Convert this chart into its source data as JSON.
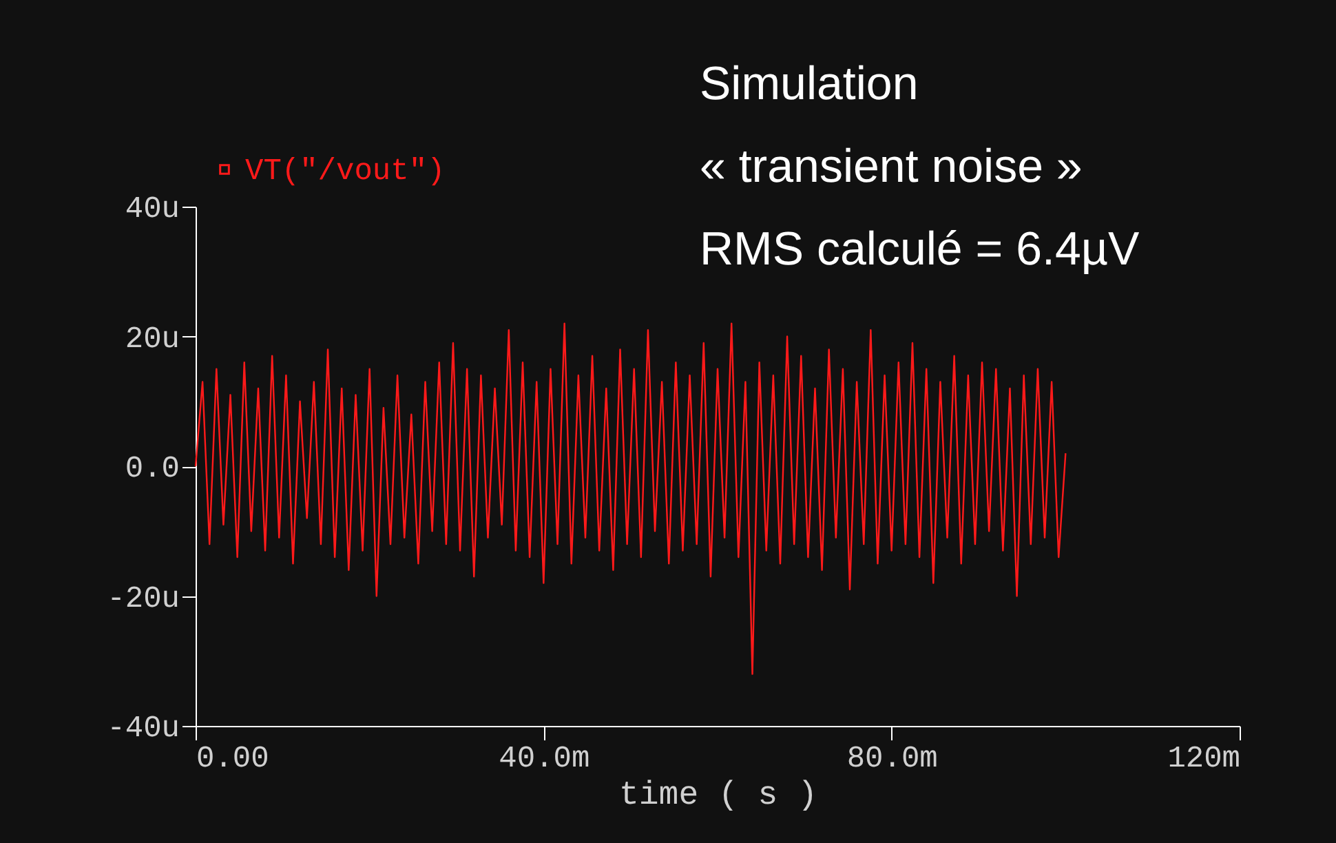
{
  "chart_data": {
    "type": "line",
    "xlabel": "time ( s )",
    "x": [
      0,
      0.8,
      1.6,
      2.4,
      3.2,
      4,
      4.8,
      5.6,
      6.4,
      7.2,
      8,
      8.8,
      9.6,
      10.4,
      11.2,
      12,
      12.8,
      13.6,
      14.4,
      15.2,
      16,
      16.8,
      17.6,
      18.4,
      19.2,
      20,
      20.8,
      21.6,
      22.4,
      23.2,
      24,
      24.8,
      25.6,
      26.4,
      27.2,
      28,
      28.8,
      29.6,
      30.4,
      31.2,
      32,
      32.8,
      33.6,
      34.4,
      35.2,
      36,
      36.8,
      37.6,
      38.4,
      39.2,
      40,
      40.8,
      41.6,
      42.4,
      43.2,
      44,
      44.8,
      45.6,
      46.4,
      47.2,
      48,
      48.8,
      49.6,
      50.4,
      51.2,
      52,
      52.8,
      53.6,
      54.4,
      55.2,
      56,
      56.8,
      57.6,
      58.4,
      59.2,
      60,
      60.8,
      61.6,
      62.4,
      63.2,
      64,
      64.8,
      65.6,
      66.4,
      67.2,
      68,
      68.8,
      69.6,
      70.4,
      71.2,
      72,
      72.8,
      73.6,
      74.4,
      75.2,
      76,
      76.8,
      77.6,
      78.4,
      79.2,
      80,
      80.8,
      81.6,
      82.4,
      83.2,
      84,
      84.8,
      85.6,
      86.4,
      87.2,
      88,
      88.8,
      89.6,
      90.4,
      91.2,
      92,
      92.8,
      93.6,
      94.4,
      95.2,
      96,
      96.8,
      97.6,
      98.4,
      99.2,
      100
    ],
    "series": [
      {
        "name": "VT(\"/vout\")",
        "color": "#ff1a1a",
        "values": [
          0,
          13,
          -12,
          15,
          -9,
          11,
          -14,
          16,
          -10,
          12,
          -13,
          17,
          -11,
          14,
          -15,
          10,
          -8,
          13,
          -12,
          18,
          -14,
          12,
          -16,
          11,
          -13,
          15,
          -20,
          9,
          -12,
          14,
          -11,
          8,
          -15,
          13,
          -10,
          16,
          -12,
          19,
          -13,
          15,
          -17,
          14,
          -11,
          12,
          -9,
          21,
          -13,
          16,
          -14,
          13,
          -18,
          15,
          -12,
          22,
          -15,
          14,
          -11,
          17,
          -13,
          12,
          -16,
          18,
          -12,
          15,
          -14,
          21,
          -10,
          13,
          -15,
          16,
          -13,
          14,
          -12,
          19,
          -17,
          15,
          -11,
          22,
          -14,
          13,
          -32,
          16,
          -13,
          14,
          -15,
          20,
          -12,
          17,
          -14,
          12,
          -16,
          18,
          -11,
          15,
          -19,
          13,
          -12,
          21,
          -15,
          14,
          -13,
          16,
          -12,
          19,
          -14,
          15,
          -18,
          13,
          -11,
          17,
          -15,
          14,
          -12,
          16,
          -10,
          15,
          -13,
          12,
          -20,
          14,
          -12,
          15,
          -11,
          13,
          -14,
          2
        ]
      }
    ],
    "xlim": [
      0,
      120
    ],
    "xticks": [
      {
        "value": 0,
        "label": "0.00"
      },
      {
        "value": 40,
        "label": "40.0m"
      },
      {
        "value": 80,
        "label": "80.0m"
      },
      {
        "value": 120,
        "label": "120m"
      }
    ],
    "ylim": [
      -40,
      40
    ],
    "yticks": [
      {
        "value": -40,
        "label": "-40u"
      },
      {
        "value": -20,
        "label": "-20u"
      },
      {
        "value": 0,
        "label": "0.0"
      },
      {
        "value": 20,
        "label": "20u"
      },
      {
        "value": 40,
        "label": "40u"
      }
    ],
    "grid": false,
    "legend": "top left",
    "line_style": "solid",
    "annotations": [
      "Simulation",
      "« transient noise »",
      "RMS calculé = 6.4µV"
    ]
  }
}
